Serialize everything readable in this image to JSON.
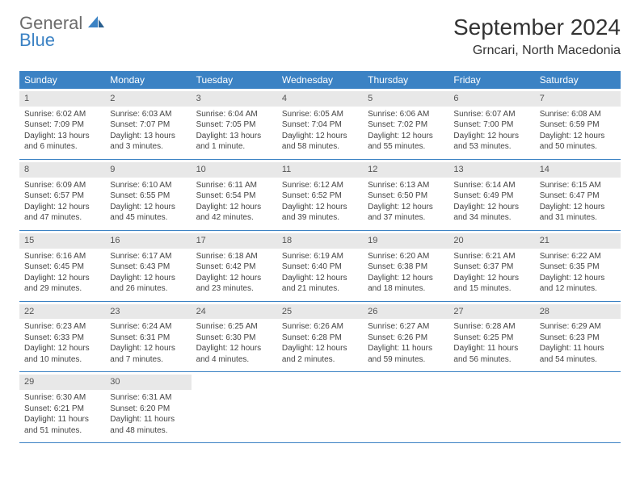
{
  "logo": {
    "line1": "General",
    "line2": "Blue"
  },
  "title": "September 2024",
  "location": "Grncari, North Macedonia",
  "header_bg": "#3b82c4",
  "daynum_bg": "#e8e8e8",
  "row_border": "#3b82c4",
  "title_fontsize": 28,
  "location_fontsize": 16,
  "weekday_fontsize": 12,
  "body_fontsize": 10,
  "weekdays": [
    "Sunday",
    "Monday",
    "Tuesday",
    "Wednesday",
    "Thursday",
    "Friday",
    "Saturday"
  ],
  "weeks": [
    [
      {
        "n": "1",
        "sr": "6:02 AM",
        "ss": "7:09 PM",
        "dl": "13 hours and 6 minutes."
      },
      {
        "n": "2",
        "sr": "6:03 AM",
        "ss": "7:07 PM",
        "dl": "13 hours and 3 minutes."
      },
      {
        "n": "3",
        "sr": "6:04 AM",
        "ss": "7:05 PM",
        "dl": "13 hours and 1 minute."
      },
      {
        "n": "4",
        "sr": "6:05 AM",
        "ss": "7:04 PM",
        "dl": "12 hours and 58 minutes."
      },
      {
        "n": "5",
        "sr": "6:06 AM",
        "ss": "7:02 PM",
        "dl": "12 hours and 55 minutes."
      },
      {
        "n": "6",
        "sr": "6:07 AM",
        "ss": "7:00 PM",
        "dl": "12 hours and 53 minutes."
      },
      {
        "n": "7",
        "sr": "6:08 AM",
        "ss": "6:59 PM",
        "dl": "12 hours and 50 minutes."
      }
    ],
    [
      {
        "n": "8",
        "sr": "6:09 AM",
        "ss": "6:57 PM",
        "dl": "12 hours and 47 minutes."
      },
      {
        "n": "9",
        "sr": "6:10 AM",
        "ss": "6:55 PM",
        "dl": "12 hours and 45 minutes."
      },
      {
        "n": "10",
        "sr": "6:11 AM",
        "ss": "6:54 PM",
        "dl": "12 hours and 42 minutes."
      },
      {
        "n": "11",
        "sr": "6:12 AM",
        "ss": "6:52 PM",
        "dl": "12 hours and 39 minutes."
      },
      {
        "n": "12",
        "sr": "6:13 AM",
        "ss": "6:50 PM",
        "dl": "12 hours and 37 minutes."
      },
      {
        "n": "13",
        "sr": "6:14 AM",
        "ss": "6:49 PM",
        "dl": "12 hours and 34 minutes."
      },
      {
        "n": "14",
        "sr": "6:15 AM",
        "ss": "6:47 PM",
        "dl": "12 hours and 31 minutes."
      }
    ],
    [
      {
        "n": "15",
        "sr": "6:16 AM",
        "ss": "6:45 PM",
        "dl": "12 hours and 29 minutes."
      },
      {
        "n": "16",
        "sr": "6:17 AM",
        "ss": "6:43 PM",
        "dl": "12 hours and 26 minutes."
      },
      {
        "n": "17",
        "sr": "6:18 AM",
        "ss": "6:42 PM",
        "dl": "12 hours and 23 minutes."
      },
      {
        "n": "18",
        "sr": "6:19 AM",
        "ss": "6:40 PM",
        "dl": "12 hours and 21 minutes."
      },
      {
        "n": "19",
        "sr": "6:20 AM",
        "ss": "6:38 PM",
        "dl": "12 hours and 18 minutes."
      },
      {
        "n": "20",
        "sr": "6:21 AM",
        "ss": "6:37 PM",
        "dl": "12 hours and 15 minutes."
      },
      {
        "n": "21",
        "sr": "6:22 AM",
        "ss": "6:35 PM",
        "dl": "12 hours and 12 minutes."
      }
    ],
    [
      {
        "n": "22",
        "sr": "6:23 AM",
        "ss": "6:33 PM",
        "dl": "12 hours and 10 minutes."
      },
      {
        "n": "23",
        "sr": "6:24 AM",
        "ss": "6:31 PM",
        "dl": "12 hours and 7 minutes."
      },
      {
        "n": "24",
        "sr": "6:25 AM",
        "ss": "6:30 PM",
        "dl": "12 hours and 4 minutes."
      },
      {
        "n": "25",
        "sr": "6:26 AM",
        "ss": "6:28 PM",
        "dl": "12 hours and 2 minutes."
      },
      {
        "n": "26",
        "sr": "6:27 AM",
        "ss": "6:26 PM",
        "dl": "11 hours and 59 minutes."
      },
      {
        "n": "27",
        "sr": "6:28 AM",
        "ss": "6:25 PM",
        "dl": "11 hours and 56 minutes."
      },
      {
        "n": "28",
        "sr": "6:29 AM",
        "ss": "6:23 PM",
        "dl": "11 hours and 54 minutes."
      }
    ],
    [
      {
        "n": "29",
        "sr": "6:30 AM",
        "ss": "6:21 PM",
        "dl": "11 hours and 51 minutes."
      },
      {
        "n": "30",
        "sr": "6:31 AM",
        "ss": "6:20 PM",
        "dl": "11 hours and 48 minutes."
      },
      null,
      null,
      null,
      null,
      null
    ]
  ]
}
